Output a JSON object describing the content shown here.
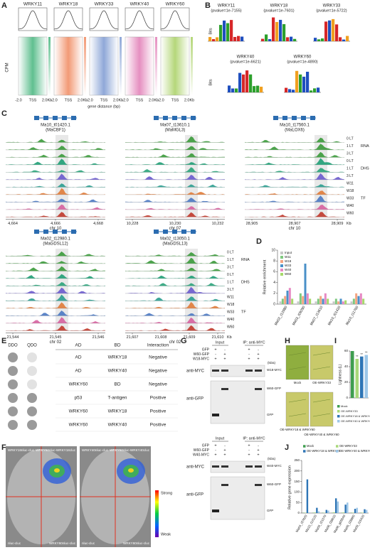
{
  "panels": {
    "A": {
      "label": "A",
      "samples": [
        "WRKY11",
        "WRKY18",
        "WRKY33",
        "WRKY40",
        "WRKY60"
      ],
      "colors": [
        "#5fbf8f",
        "#f29a76",
        "#8fa8d8",
        "#e58fc0",
        "#b5d77a"
      ],
      "y_label": "CPM",
      "x_ticks": [
        "-2.0",
        "TSS",
        "2.0Kb"
      ],
      "x_label": "gene distance (bp)"
    },
    "B": {
      "label": "B",
      "y_label": "Bits",
      "motifs": [
        {
          "name": "WRKY11",
          "pvalue": "(pvalue=1e-7155)"
        },
        {
          "name": "WRKY18",
          "pvalue": "(pvalue=1e-7601)"
        },
        {
          "name": "WRKY33",
          "pvalue": "(pvalue=1e-5722)"
        },
        {
          "name": "WRKY40",
          "pvalue": "(pvalue=1e-6621)"
        },
        {
          "name": "WRKY60",
          "pvalue": "(pvalue=1e-4890)"
        }
      ]
    },
    "C": {
      "label": "C",
      "tracks": [
        "0 LT",
        "1 LT",
        "3 LT",
        "0 LT",
        "1 LT",
        "3 LT",
        "W11",
        "W18",
        "W33",
        "W40",
        "W60"
      ],
      "groups": [
        "RNA",
        "DHS",
        "TF"
      ],
      "unit": "Kb",
      "loci": [
        {
          "gene": "Ma10_t01420.1",
          "alias": "(MaCBF1)",
          "chr": "chr 10",
          "ticks": [
            "4,664",
            "4,666",
            "4,668"
          ]
        },
        {
          "gene": "Ma07_t13610.1",
          "alias": "(MaMGL3)",
          "chr": "chr 07",
          "ticks": [
            "10,228",
            "10,230",
            "10,232"
          ]
        },
        {
          "gene": "Ma10_t17560.1",
          "alias": "(MaLOX6)",
          "chr": "chr 10",
          "ticks": [
            "28,905",
            "28,907",
            "28,909"
          ]
        },
        {
          "gene": "Ma02_t12980.1",
          "alias": "(MaGDSL12)",
          "chr": "chr 02",
          "ticks": [
            "21,544",
            "21,545",
            "21,546"
          ]
        },
        {
          "gene": "Ma02_t13050.1",
          "alias": "(MaGDSL13)",
          "chr": "chr 02",
          "ticks": [
            "21,607",
            "21,608",
            "21,609",
            "21,610"
          ]
        }
      ]
    },
    "D": {
      "label": "D",
      "type": "bar",
      "y_label": "Relative enrichment",
      "ylim": [
        0,
        10
      ],
      "yticks": [
        0,
        2,
        4,
        6,
        8,
        10
      ],
      "categories": [
        "Ma02_t12980",
        "Ma03_t09290",
        "Ma07_t13610",
        "Ma10_t01420",
        "Ma10_t11760"
      ],
      "series": [
        {
          "name": "Input",
          "color": "#c8c8c8",
          "values": [
            0.5,
            0.5,
            0.5,
            0.5,
            0.5
          ]
        },
        {
          "name": "W11",
          "color": "#7fc97f",
          "values": [
            1,
            2,
            1,
            1,
            1
          ]
        },
        {
          "name": "W18",
          "color": "#f4a582",
          "values": [
            1.5,
            1.5,
            1.5,
            0.5,
            2
          ]
        },
        {
          "name": "W33",
          "color": "#4a90c8",
          "values": [
            2.5,
            7.5,
            1,
            1,
            1.5
          ]
        },
        {
          "name": "W40",
          "color": "#e78ac3",
          "values": [
            3,
            2,
            2,
            0.5,
            2
          ]
        },
        {
          "name": "W60",
          "color": "#a6d96a",
          "values": [
            1,
            1,
            1,
            0.7,
            1
          ]
        }
      ]
    },
    "E": {
      "label": "E",
      "media": [
        "DDO",
        "QDO"
      ],
      "header": [
        "AD",
        "BD",
        "Interaction"
      ],
      "rows": [
        [
          "AD",
          "WRKY18",
          "Negative"
        ],
        [
          "AD",
          "WRKY40",
          "Negative"
        ],
        [
          "WRKY60",
          "BD",
          "Negative"
        ],
        [
          "p53",
          "T-antigen",
          "Positive"
        ],
        [
          "WRKY60",
          "WRKY18",
          "Positive"
        ],
        [
          "WRKY60",
          "WRKY40",
          "Positive"
        ]
      ]
    },
    "F": {
      "label": "F",
      "leaves": [
        {
          "tl": "WRKY18nluc-cluc",
          "tr": "WRKY60nluc-WRKY18cluc",
          "bl": "nluc-cluc",
          "br": "WRKY60nluc-cluc"
        },
        {
          "tl": "WRKY40nluc-cluc",
          "tr": "WRKY60nluc-WRKY40cluc",
          "bl": "nluc-cluc",
          "br": "WRKY60nluc-cluc"
        }
      ],
      "scale": [
        "Strong",
        "Weak"
      ]
    },
    "G": {
      "label": "G",
      "headers": [
        "Input",
        "IP: anti-MYC"
      ],
      "kda": "(kDa)",
      "blots": [
        {
          "rows": [
            {
              "name": "GFP",
              "signs": [
                "+",
                "-",
                "+",
                "-"
              ]
            },
            {
              "name": "W60-GFP",
              "signs": [
                "-",
                "+",
                "-",
                "+"
              ]
            },
            {
              "name": "W18-MYC",
              "signs": [
                "+",
                "+",
                "+",
                "+"
              ]
            }
          ],
          "antibodies": [
            "anti-MYC",
            "anti-GFP"
          ],
          "markers": [
            "W18-MYC",
            "W60-GFP",
            "GFP"
          ]
        },
        {
          "rows": [
            {
              "name": "GFP",
              "signs": [
                "+",
                "-",
                "+",
                "-"
              ]
            },
            {
              "name": "W60-GFP",
              "signs": [
                "-",
                "+",
                "-",
                "+"
              ]
            },
            {
              "name": "W40-MYC",
              "signs": [
                "+",
                "+",
                "+",
                "+"
              ]
            }
          ],
          "antibodies": [
            "anti-MYC",
            "anti-GFP"
          ],
          "markers": [
            "W40-MYC",
            "W60-GFP",
            "GFP"
          ]
        }
      ]
    },
    "H": {
      "label": "H",
      "images": [
        "Mock",
        "OE-WRKY33",
        "OE-WRKY18 & WRKY60",
        "OE-WRKY40 & WRKY60"
      ]
    },
    "I": {
      "label": "I",
      "type": "bar",
      "y_label": "Lightness (L)",
      "ylim": [
        0,
        60
      ],
      "yticks": [
        0,
        20,
        40,
        60
      ],
      "categories": [
        "Mock",
        "OE-WRKY33",
        "OE-WRKY18 & WRKY60",
        "OE-WRKY40 & WRKY60"
      ],
      "values": [
        60,
        50,
        53,
        55
      ],
      "colors": [
        "#3f9e4f",
        "#a8d87a",
        "#2e75b6",
        "#9cc6e8"
      ],
      "significance": [
        null,
        "**",
        "**",
        "**"
      ]
    },
    "J": {
      "label": "J",
      "type": "bar",
      "y_label": "Relative gene expression",
      "ylim": [
        0,
        250
      ],
      "yticks": [
        0,
        50,
        100,
        150,
        200,
        250
      ],
      "categories": [
        "Ma04_t37620",
        "Ma10_t12120",
        "Ma05_t21070",
        "Ma06_t38610",
        "Ma06_g05640",
        "Ma09_t28880",
        "Ma09_t15420"
      ],
      "series": [
        {
          "name": "Mock",
          "color": "#3f9e4f",
          "values": [
            1,
            1,
            1,
            1,
            1,
            1,
            1
          ]
        },
        {
          "name": "OE-WRKY33",
          "color": "#a8d87a",
          "values": [
            2,
            3,
            1.5,
            4,
            3,
            2,
            2
          ]
        },
        {
          "name": "OE-WRKY18 & WRKY60",
          "color": "#2e75b6",
          "values": [
            160,
            25,
            15,
            70,
            40,
            20,
            18
          ]
        },
        {
          "name": "OE-WRKY40 & WRKY60",
          "color": "#9cc6e8",
          "values": [
            3,
            8,
            12,
            55,
            50,
            25,
            15
          ]
        }
      ]
    }
  }
}
